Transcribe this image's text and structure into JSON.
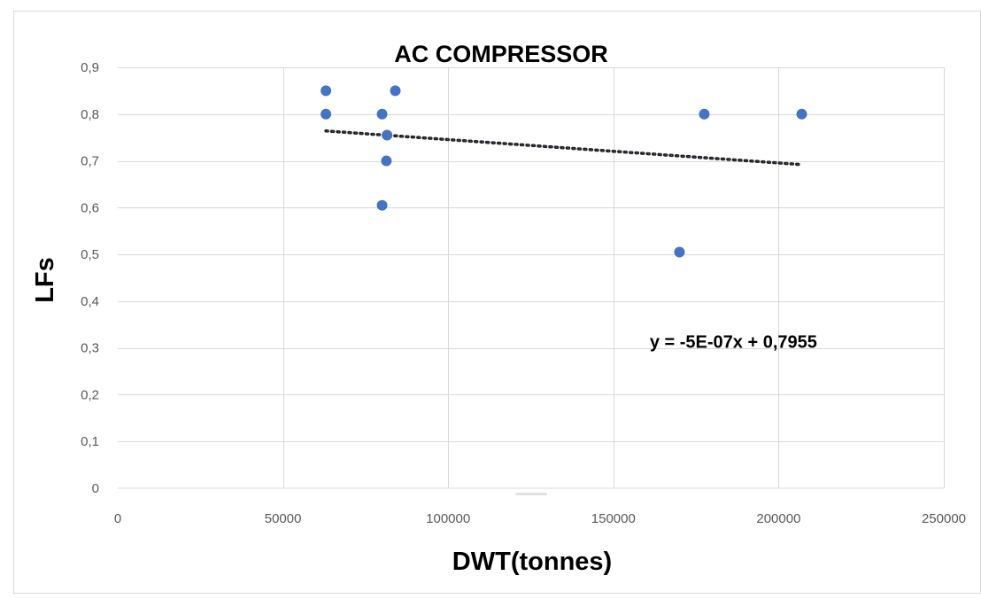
{
  "chart_data": {
    "type": "scatter",
    "title": "AC COMPRESSOR",
    "xlabel": "DWT(tonnes)",
    "ylabel": "LFs",
    "xlim": [
      0,
      250000
    ],
    "ylim": [
      0,
      0.9
    ],
    "x_ticks": [
      0,
      50000,
      100000,
      150000,
      200000,
      250000
    ],
    "x_tick_labels": [
      "0",
      "50000",
      "100000",
      "150000",
      "200000",
      "250000"
    ],
    "y_ticks": [
      0,
      0.1,
      0.2,
      0.3,
      0.4,
      0.5,
      0.6,
      0.7,
      0.8,
      0.9
    ],
    "y_tick_labels": [
      "0",
      "0,1",
      "0,2",
      "0,3",
      "0,4",
      "0,5",
      "0,6",
      "0,7",
      "0,8",
      "0,9"
    ],
    "grid": true,
    "series": [
      {
        "color": "#4472C4",
        "points": [
          {
            "x": 63000,
            "y": 0.85
          },
          {
            "x": 63000,
            "y": 0.8
          },
          {
            "x": 80000,
            "y": 0.8
          },
          {
            "x": 80000,
            "y": 0.605
          },
          {
            "x": 81300,
            "y": 0.7
          },
          {
            "x": 81500,
            "y": 0.755
          },
          {
            "x": 84000,
            "y": 0.85
          },
          {
            "x": 170000,
            "y": 0.505
          },
          {
            "x": 177500,
            "y": 0.8
          },
          {
            "x": 207000,
            "y": 0.8
          }
        ]
      }
    ],
    "trendline": {
      "type": "linear",
      "slope": -5e-07,
      "intercept": 0.7955,
      "x_range": [
        63000,
        207000
      ],
      "equation_label": "y = -5E-07x  + 0,7955",
      "label_at": [
        161000,
        0.3
      ]
    }
  }
}
